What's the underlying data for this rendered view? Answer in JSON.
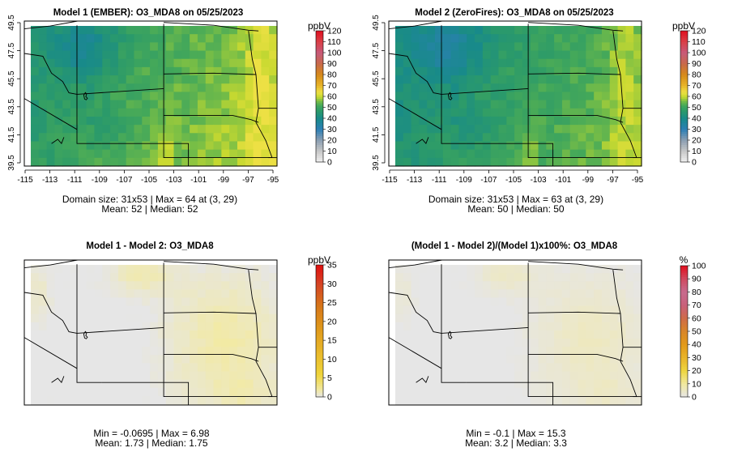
{
  "chart_data": [
    {
      "type": "heatmap",
      "title": "Model 1 (EMBER): O3_MDA8 on 05/25/2023",
      "xticks": [
        "-115",
        "-113",
        "-111",
        "-109",
        "-107",
        "-105",
        "-103",
        "-101",
        "-99",
        "-97",
        "-95"
      ],
      "yticks": [
        "39.5",
        "41.5",
        "43.5",
        "45.5",
        "47.5",
        "49.5"
      ],
      "xlim": [
        -115.3,
        -94.9
      ],
      "ylim": [
        39.4,
        49.7
      ],
      "colorbar": {
        "unit": "ppbV",
        "min": 0,
        "max": 120,
        "labels": [
          "0",
          "10",
          "20",
          "30",
          "40",
          "50",
          "60",
          "70",
          "80",
          "90",
          "100",
          "110",
          "120"
        ]
      },
      "stats": [
        "Domain size: 31x53 | Max = 64 at (3, 29)",
        "Mean: 52 |  Median: 52"
      ],
      "field": {
        "base": 52,
        "max": 64,
        "mean": 52,
        "median": 52,
        "domain": "31x53"
      }
    },
    {
      "type": "heatmap",
      "title": "Model 2 (ZeroFires): O3_MDA8 on 05/25/2023",
      "xticks": [
        "-115",
        "-113",
        "-111",
        "-109",
        "-107",
        "-105",
        "-103",
        "-101",
        "-99",
        "-97",
        "-95"
      ],
      "yticks": [
        "39.5",
        "41.5",
        "43.5",
        "45.5",
        "47.5",
        "49.5"
      ],
      "xlim": [
        -115.3,
        -94.9
      ],
      "ylim": [
        39.4,
        49.7
      ],
      "colorbar": {
        "unit": "ppbV",
        "min": 0,
        "max": 120,
        "labels": [
          "0",
          "10",
          "20",
          "30",
          "40",
          "50",
          "60",
          "70",
          "80",
          "90",
          "100",
          "110",
          "120"
        ]
      },
      "stats": [
        "Domain size: 31x53 | Max = 63 at (3, 29)",
        "Mean: 50 |  Median: 50"
      ],
      "field": {
        "base": 50,
        "max": 63,
        "mean": 50,
        "median": 50,
        "domain": "31x53"
      }
    },
    {
      "type": "heatmap",
      "title": "Model 1 - Model 2: O3_MDA8",
      "colorbar": {
        "unit": "ppbV",
        "min": 0,
        "max": 35,
        "labels": [
          "0",
          "5",
          "10",
          "15",
          "20",
          "25",
          "30",
          "35"
        ]
      },
      "stats": [
        "Min = -0.0695 | Max = 6.98",
        "Mean: 1.73 |  Median: 1.75"
      ],
      "field": {
        "min": -0.0695,
        "max": 6.98,
        "mean": 1.73,
        "median": 1.75
      }
    },
    {
      "type": "heatmap",
      "title": "(Model 1 - Model 2)/(Model 1)x100%: O3_MDA8",
      "colorbar": {
        "unit": "%",
        "min": 0,
        "max": 100,
        "labels": [
          "0",
          "10",
          "20",
          "30",
          "40",
          "50",
          "60",
          "70",
          "80",
          "90",
          "100"
        ]
      },
      "stats": [
        "Min = -0.1 | Max = 15.3",
        "Mean: 3.2 |  Median: 3.3"
      ],
      "field": {
        "min": -0.1,
        "max": 15.3,
        "mean": 3.2,
        "median": 3.3
      }
    }
  ]
}
